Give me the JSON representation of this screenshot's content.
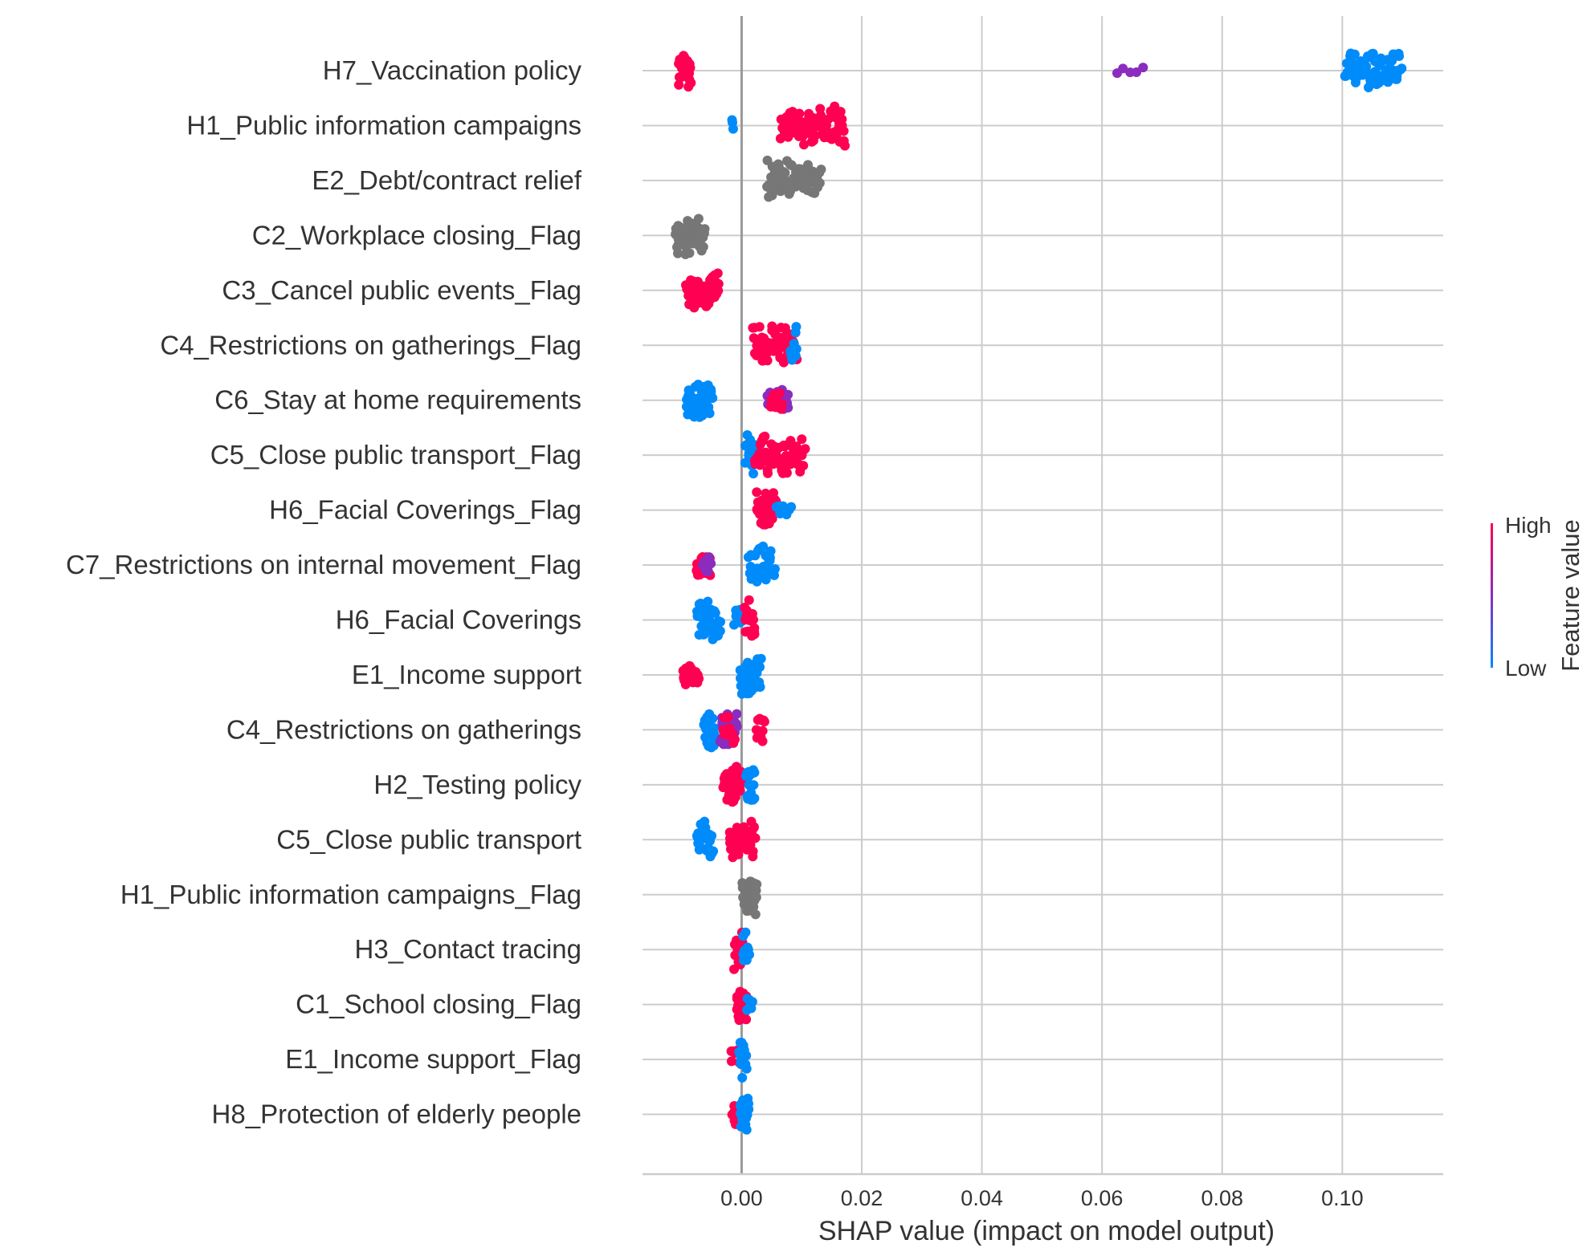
{
  "chart_data": {
    "type": "scatter",
    "subtype": "shap-beeswarm",
    "title": "",
    "xlabel": "SHAP value (impact on model output)",
    "ylabel": "",
    "xlim": [
      -0.0165,
      0.1168
    ],
    "xticks": [
      0.0,
      0.02,
      0.04,
      0.06,
      0.08,
      0.1
    ],
    "xtick_labels": [
      "0.00",
      "0.02",
      "0.04",
      "0.06",
      "0.08",
      "0.10"
    ],
    "grid": true,
    "zero_line": 0.0,
    "colorbar": {
      "label": "Feature value",
      "high_label": "High",
      "low_label": "Low",
      "high_color": "#ff0052",
      "low_color": "#008bfb",
      "placement": "right"
    },
    "colors": {
      "high": "#ff0052",
      "mid": "#8b2cbf",
      "low": "#008bfb",
      "missing": "#777777"
    },
    "features": [
      {
        "name": "H7_Vaccination policy",
        "clusters": [
          {
            "x": [
              -0.0105,
              -0.0085
            ],
            "count": 40,
            "height": 1.0,
            "color": "high"
          },
          {
            "x": [
              0.0625,
              0.0668
            ],
            "count": 5,
            "height": 0.25,
            "color": "mid"
          },
          {
            "x": [
              0.1005,
              0.1098
            ],
            "count": 70,
            "height": 1.0,
            "color": "low"
          }
        ]
      },
      {
        "name": "H1_Public information campaigns",
        "clusters": [
          {
            "x": [
              -0.0015,
              -0.0015
            ],
            "count": 3,
            "height": 0.3,
            "color": "low"
          },
          {
            "x": [
              0.0065,
              0.0172
            ],
            "count": 80,
            "height": 1.0,
            "color": "high"
          }
        ]
      },
      {
        "name": "E2_Debt/contract relief",
        "clusters": [
          {
            "x": [
              0.0042,
              0.0132
            ],
            "count": 80,
            "height": 1.0,
            "color": "missing"
          }
        ]
      },
      {
        "name": "C2_Workplace closing_Flag",
        "clusters": [
          {
            "x": [
              -0.011,
              -0.0062
            ],
            "count": 60,
            "height": 1.0,
            "color": "missing"
          }
        ]
      },
      {
        "name": "C3_Cancel public events_Flag",
        "clusters": [
          {
            "x": [
              -0.0092,
              -0.0038
            ],
            "count": 60,
            "height": 1.0,
            "color": "high"
          }
        ]
      },
      {
        "name": "C4_Restrictions on gatherings_Flag",
        "clusters": [
          {
            "x": [
              0.0018,
              0.0092
            ],
            "count": 50,
            "height": 1.0,
            "color": "high"
          },
          {
            "x": [
              0.0082,
              0.0092
            ],
            "count": 10,
            "height": 1.0,
            "color": "low"
          }
        ]
      },
      {
        "name": "C6_Stay at home requirements",
        "clusters": [
          {
            "x": [
              -0.0092,
              -0.0048
            ],
            "count": 50,
            "height": 1.0,
            "color": "low"
          },
          {
            "x": [
              0.0042,
              0.0078
            ],
            "count": 30,
            "height": 0.55,
            "color": "mid"
          },
          {
            "x": [
              0.0048,
              0.0068
            ],
            "count": 12,
            "height": 0.5,
            "color": "high"
          }
        ]
      },
      {
        "name": "C5_Close public transport_Flag",
        "clusters": [
          {
            "x": [
              0.0006,
              0.0022
            ],
            "count": 16,
            "height": 1.0,
            "color": "low"
          },
          {
            "x": [
              0.0022,
              0.0105
            ],
            "count": 60,
            "height": 1.0,
            "color": "high"
          }
        ]
      },
      {
        "name": "H6_Facial Coverings_Flag",
        "clusters": [
          {
            "x": [
              0.0025,
              0.0058
            ],
            "count": 45,
            "height": 1.0,
            "color": "high"
          },
          {
            "x": [
              0.0058,
              0.0082
            ],
            "count": 8,
            "height": 0.4,
            "color": "low"
          }
        ]
      },
      {
        "name": "C7_Restrictions on internal movement_Flag",
        "clusters": [
          {
            "x": [
              -0.0075,
              -0.0052
            ],
            "count": 30,
            "height": 0.55,
            "color": "high"
          },
          {
            "x": [
              -0.0065,
              -0.0052
            ],
            "count": 8,
            "height": 0.45,
            "color": "mid"
          },
          {
            "x": [
              0.0012,
              0.0055
            ],
            "count": 35,
            "height": 1.0,
            "color": "low"
          }
        ]
      },
      {
        "name": "H6_Facial Coverings",
        "clusters": [
          {
            "x": [
              -0.0075,
              -0.0035
            ],
            "count": 40,
            "height": 1.0,
            "color": "low"
          },
          {
            "x": [
              -0.0012,
              0.0002
            ],
            "count": 10,
            "height": 0.8,
            "color": "low"
          },
          {
            "x": [
              0.0005,
              0.0022
            ],
            "count": 20,
            "height": 1.0,
            "color": "high"
          }
        ]
      },
      {
        "name": "E1_Income support",
        "clusters": [
          {
            "x": [
              -0.0098,
              -0.0072
            ],
            "count": 25,
            "height": 0.6,
            "color": "high"
          },
          {
            "x": [
              -0.0002,
              0.0032
            ],
            "count": 40,
            "height": 1.0,
            "color": "low"
          }
        ]
      },
      {
        "name": "C4_Restrictions on gatherings",
        "clusters": [
          {
            "x": [
              -0.0062,
              -0.0045
            ],
            "count": 25,
            "height": 1.0,
            "color": "low"
          },
          {
            "x": [
              -0.0035,
              -0.0008
            ],
            "count": 40,
            "height": 0.9,
            "color": "mid"
          },
          {
            "x": [
              -0.003,
              -0.0012
            ],
            "count": 15,
            "height": 0.8,
            "color": "high"
          },
          {
            "x": [
              0.0025,
              0.0038
            ],
            "count": 12,
            "height": 0.75,
            "color": "high"
          }
        ]
      },
      {
        "name": "H2_Testing policy",
        "clusters": [
          {
            "x": [
              -0.003,
              0.0002
            ],
            "count": 50,
            "height": 1.0,
            "color": "high"
          },
          {
            "x": [
              0.0008,
              0.0022
            ],
            "count": 20,
            "height": 1.0,
            "color": "low"
          }
        ]
      },
      {
        "name": "C5_Close public transport",
        "clusters": [
          {
            "x": [
              -0.0075,
              -0.0048
            ],
            "count": 25,
            "height": 1.0,
            "color": "low"
          },
          {
            "x": [
              -0.002,
              0.0022
            ],
            "count": 50,
            "height": 1.0,
            "color": "high"
          }
        ]
      },
      {
        "name": "H1_Public information campaigns_Flag",
        "clusters": [
          {
            "x": [
              0.0001,
              0.0025
            ],
            "count": 40,
            "height": 1.0,
            "color": "missing"
          }
        ]
      },
      {
        "name": "H3_Contact tracing",
        "clusters": [
          {
            "x": [
              -0.0012,
              0.0002
            ],
            "count": 20,
            "height": 1.0,
            "color": "high"
          },
          {
            "x": [
              0.0002,
              0.0012
            ],
            "count": 10,
            "height": 0.9,
            "color": "low"
          }
        ]
      },
      {
        "name": "C1_School closing_Flag",
        "clusters": [
          {
            "x": [
              -0.0008,
              0.0008
            ],
            "count": 25,
            "height": 1.0,
            "color": "high"
          },
          {
            "x": [
              0.0008,
              0.0018
            ],
            "count": 6,
            "height": 0.4,
            "color": "low"
          }
        ]
      },
      {
        "name": "E1_Income support_Flag",
        "clusters": [
          {
            "x": [
              -0.0018,
              -0.0002
            ],
            "count": 10,
            "height": 0.55,
            "color": "high"
          },
          {
            "x": [
              -0.0004,
              0.0008
            ],
            "count": 20,
            "height": 1.0,
            "color": "low"
          }
        ]
      },
      {
        "name": "H8_Protection of elderly people",
        "clusters": [
          {
            "x": [
              -0.0015,
              -0.0002
            ],
            "count": 12,
            "height": 0.75,
            "color": "high"
          },
          {
            "x": [
              -0.0002,
              0.0012
            ],
            "count": 25,
            "height": 1.0,
            "color": "low"
          }
        ]
      }
    ]
  }
}
